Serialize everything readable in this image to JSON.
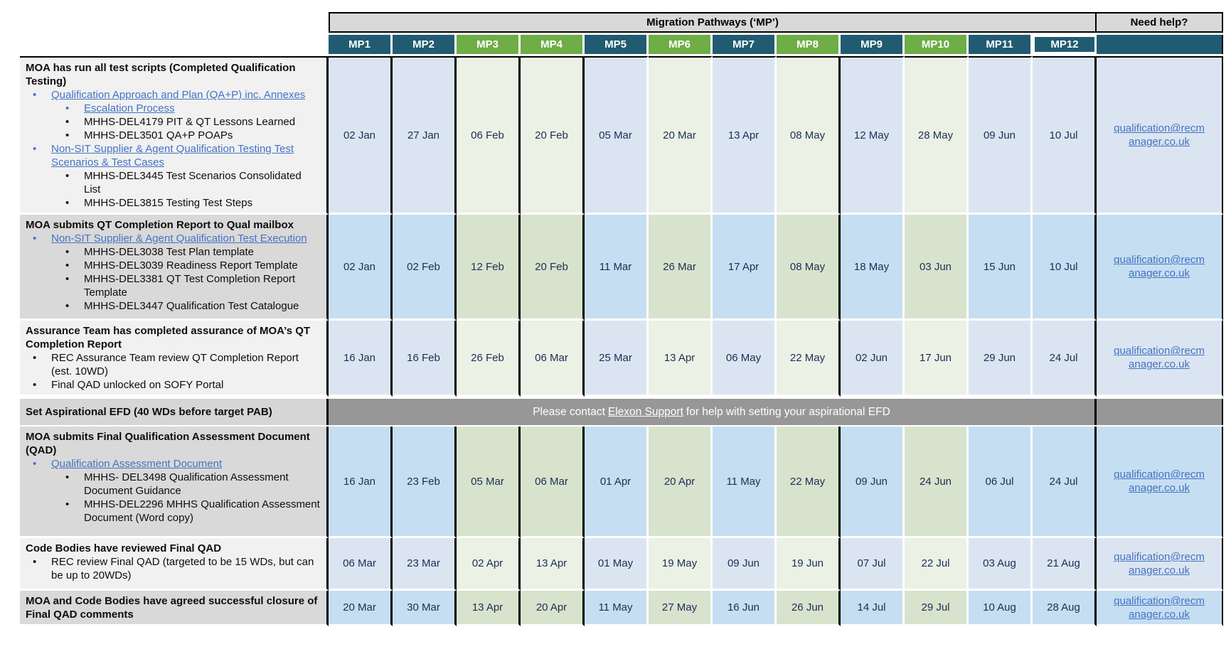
{
  "colors": {
    "header_gray": "#D9D9D9",
    "dark_blue": "#215B72",
    "green": "#6FAD47",
    "blue_cell_light": "#DBE5F1",
    "green_cell_light": "#EBF1E5",
    "blue_cell_dark": "#C6DEF1",
    "green_cell_dark": "#D8E3CD",
    "efd_band_gray": "#979797",
    "left_cell_gray": "#D9D9D9",
    "left_cell_light": "#F1F1F1",
    "link_blue": "#4472C4"
  },
  "header": {
    "group_title": "Migration Pathways (‘MP’)",
    "need_help": "Need help?",
    "columns": [
      {
        "label": "MP1",
        "color": "blue"
      },
      {
        "label": "MP2",
        "color": "blue"
      },
      {
        "label": "MP3",
        "color": "green"
      },
      {
        "label": "MP4",
        "color": "green"
      },
      {
        "label": "MP5",
        "color": "blue"
      },
      {
        "label": "MP6",
        "color": "green"
      },
      {
        "label": "MP7",
        "color": "blue"
      },
      {
        "label": "MP8",
        "color": "green"
      },
      {
        "label": "MP9",
        "color": "blue"
      },
      {
        "label": "MP10",
        "color": "green"
      },
      {
        "label": "MP11",
        "color": "blue"
      },
      {
        "label": "MP12",
        "color": "blue",
        "selected": true
      }
    ]
  },
  "contact": {
    "email": "qualification@recmanager.co.uk",
    "line1": "qualification@recm",
    "line2": "anager.co.uk"
  },
  "rows": [
    {
      "type": "dates",
      "shade": "light",
      "left": "light",
      "title": "MOA has run all test scripts (Completed Qualification Testing)",
      "items": [
        {
          "level": 1,
          "link": true,
          "text": "Qualification Approach and Plan (QA+P) inc. Annexes"
        },
        {
          "level": 2,
          "link": true,
          "text": "Escalation Process"
        },
        {
          "level": 2,
          "link": false,
          "text": "MHHS-DEL4179 PIT & QT Lessons Learned"
        },
        {
          "level": 2,
          "link": false,
          "text": "MHHS-DEL3501 QA+P POAPs"
        },
        {
          "level": 1,
          "link": true,
          "text": "Non-SIT Supplier & Agent Qualification Testing Test Scenarios & Test Cases"
        },
        {
          "level": 2,
          "link": false,
          "text": "MHHS-DEL3445 Test Scenarios Consolidated List"
        },
        {
          "level": 2,
          "link": false,
          "text": "MHHS-DEL3815 Testing Test Steps"
        }
      ],
      "dates": [
        "02 Jan",
        "27 Jan",
        "06 Feb",
        "20 Feb",
        "05 Mar",
        "20 Mar",
        "13 Apr",
        "08 May",
        "12 May",
        "28 May",
        "09 Jun",
        "10 Jul"
      ]
    },
    {
      "type": "dates",
      "shade": "dark",
      "left": "gray",
      "title": "MOA submits QT Completion Report to Qual mailbox",
      "items": [
        {
          "level": 1,
          "link": true,
          "text": "Non-SIT Supplier & Agent Qualification Test Execution"
        },
        {
          "level": 2,
          "link": false,
          "text": "MHHS-DEL3038 Test Plan template"
        },
        {
          "level": 2,
          "link": false,
          "text": "MHHS-DEL3039 Readiness Report Template"
        },
        {
          "level": 2,
          "link": false,
          "text": "MHHS-DEL3381 QT Test Completion Report Template"
        },
        {
          "level": 2,
          "link": false,
          "text": "MHHS-DEL3447 Qualification Test Catalogue"
        }
      ],
      "dates": [
        "02 Jan",
        "02 Feb",
        "12 Feb",
        "20 Feb",
        "11 Mar",
        "26 Mar",
        "17 Apr",
        "08 May",
        "18 May",
        "03 Jun",
        "15 Jun",
        "10 Jul"
      ]
    },
    {
      "type": "dates",
      "shade": "light",
      "left": "light",
      "title": "Assurance Team has completed assurance of MOA’s QT Completion Report",
      "items": [
        {
          "level": 1,
          "link": false,
          "text": "REC Assurance Team review QT Completion Report (est. 10WD)"
        },
        {
          "level": 1,
          "link": false,
          "text": "Final QAD unlocked on SOFY Portal"
        }
      ],
      "dates": [
        "16 Jan",
        "16 Feb",
        "26 Feb",
        "06 Mar",
        "25 Mar",
        "13 Apr",
        "06 May",
        "22 May",
        "02 Jun",
        "17 Jun",
        "29 Jun",
        "24 Jul"
      ]
    },
    {
      "type": "efd",
      "left": "gray",
      "title": "Set Aspirational EFD (40 WDs before target PAB)",
      "band": {
        "before": "Please contact ",
        "link_text": "Elexon Support",
        "after": " for help with setting your aspirational EFD"
      }
    },
    {
      "type": "dates",
      "shade": "dark",
      "left": "gray",
      "title": "MOA submits Final Qualification Assessment Document (QAD)",
      "items": [
        {
          "level": 1,
          "link": true,
          "text": "Qualification Assessment Document"
        },
        {
          "level": 2,
          "link": false,
          "text": "MHHS- DEL3498 Qualification Assessment Document Guidance"
        },
        {
          "level": 2,
          "link": false,
          "text": "MHHS-DEL2296 MHHS Qualification Assessment Document (Word copy)"
        }
      ],
      "dates": [
        "16 Jan",
        "23 Feb",
        "05 Mar",
        "06 Mar",
        "01 Apr",
        "20 Apr",
        "11 May",
        "22 May",
        "09 Jun",
        "24 Jun",
        "06 Jul",
        "24 Jul"
      ]
    },
    {
      "type": "dates",
      "shade": "light",
      "left": "light",
      "title": "Code Bodies have reviewed Final QAD",
      "items": [
        {
          "level": 1,
          "link": false,
          "text": "REC review Final QAD (targeted to be 15 WDs, but can be up to 20WDs)"
        }
      ],
      "dates": [
        "06 Mar",
        "23 Mar",
        "02 Apr",
        "13 Apr",
        "01 May",
        "19 May",
        "09 Jun",
        "19 Jun",
        "07 Jul",
        "22 Jul",
        "03 Aug",
        "21 Aug"
      ]
    },
    {
      "type": "dates",
      "shade": "dark",
      "left": "gray",
      "title": "MOA and Code Bodies have agreed successful closure of Final QAD comments",
      "items": [],
      "dates": [
        "20 Mar",
        "30 Mar",
        "13 Apr",
        "20 Apr",
        "11 May",
        "27 May",
        "16 Jun",
        "26 Jun",
        "14 Jul",
        "29 Jul",
        "10 Aug",
        "28 Aug"
      ]
    }
  ]
}
